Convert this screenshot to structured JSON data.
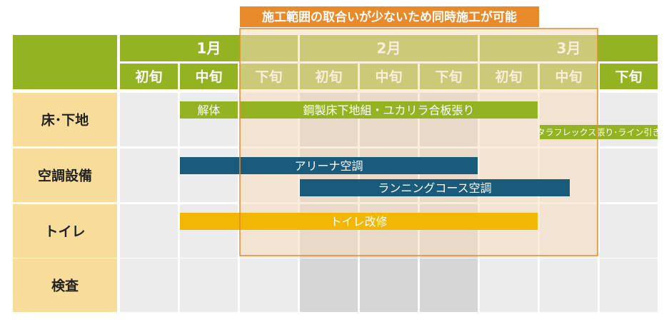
{
  "chart_data": {
    "type": "gantt",
    "annotation": "施工範囲の取合いが少ないため同時施工が可能",
    "highlight_span": [
      2,
      8
    ],
    "months": [
      {
        "label": "1月",
        "span": [
          0,
          3
        ]
      },
      {
        "label": "2月",
        "span": [
          3,
          6
        ]
      },
      {
        "label": "3月",
        "span": [
          6,
          9
        ]
      }
    ],
    "periods": [
      "初旬",
      "中旬",
      "下旬",
      "初旬",
      "中旬",
      "下旬",
      "初旬",
      "中旬",
      "下旬"
    ],
    "rows": [
      "床･下地",
      "空調設備",
      "トイレ",
      "検査"
    ],
    "tasks": [
      {
        "label": "解体",
        "row": 0,
        "lane": 0,
        "start": 1,
        "end": 2,
        "color": "#94b323"
      },
      {
        "label": "鋼製床下地組・ユカリラ合板張り",
        "row": 0,
        "lane": 0,
        "start": 2,
        "end": 7,
        "color": "#94b323"
      },
      {
        "label": "タラフレックス張り･ライン引き",
        "row": 0,
        "lane": 1,
        "start": 7,
        "end": 9,
        "color": "#94b323"
      },
      {
        "label": "アリーナ空調",
        "row": 1,
        "lane": 0,
        "start": 1,
        "end": 6,
        "color": "#1a5a7a"
      },
      {
        "label": "ランニングコース空調",
        "row": 1,
        "lane": 1,
        "start": 3,
        "end": 7.5,
        "color": "#1a5a7a"
      },
      {
        "label": "トイレ改修",
        "row": 2,
        "lane": 0,
        "start": 1,
        "end": 7,
        "color": "#f2b705"
      }
    ],
    "colors": {
      "header_green": "#94b323",
      "row_label_bg": "#f8dd9a",
      "cell_bg": "#ececec",
      "cell_dark": "#d6d6d6",
      "highlight_border": "#e8892a",
      "highlight_fill": "#f7ddc0"
    }
  }
}
